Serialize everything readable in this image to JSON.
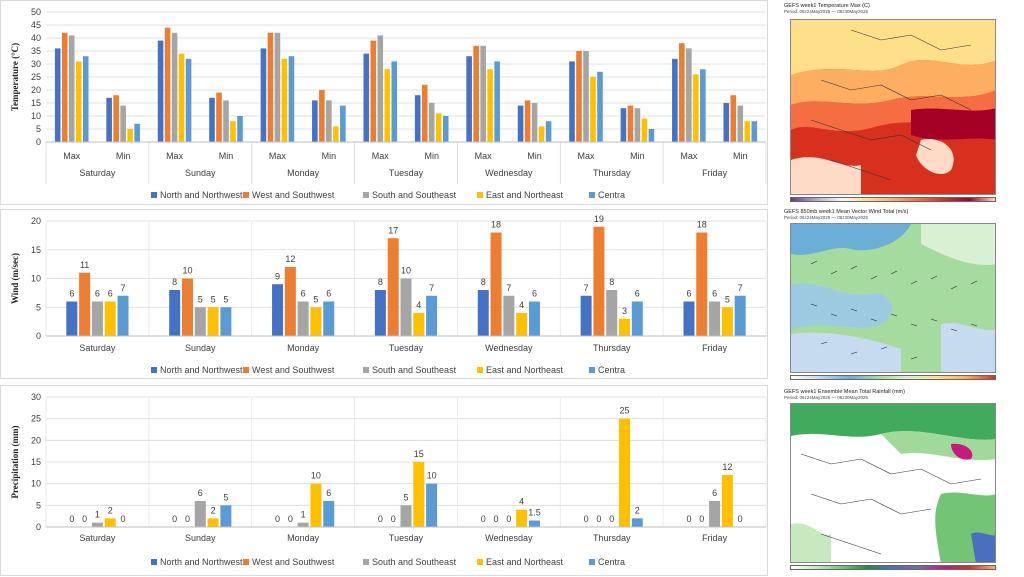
{
  "colors": {
    "North and Northwest": "#4472C4",
    "West and Southwest": "#ED7D31",
    "South and Southeast": "#A5A5A5",
    "East and Northeast": "#FFC000",
    "Centra": "#5B9BD5"
  },
  "series_names": [
    "North and Northwest",
    "West and Southwest",
    "South and Southeast",
    "East and Northeast",
    "Centra"
  ],
  "chart_data": [
    {
      "type": "bar",
      "ylabel": "Temperature (°C)",
      "ylim": [
        0,
        50
      ],
      "yticks": [
        0,
        5,
        10,
        15,
        20,
        25,
        30,
        35,
        40,
        45,
        50
      ],
      "days": [
        "Saturday",
        "Sunday",
        "Monday",
        "Tuesday",
        "Wednesday",
        "Thursday",
        "Friday"
      ],
      "subcategories": [
        "Max",
        "Min"
      ],
      "grid": true,
      "legend": "bottom",
      "series": [
        {
          "name": "North and Northwest",
          "values": [
            [
              36,
              17
            ],
            [
              39,
              17
            ],
            [
              36,
              16
            ],
            [
              34,
              18
            ],
            [
              33,
              14
            ],
            [
              31,
              13
            ],
            [
              32,
              15
            ]
          ]
        },
        {
          "name": "West and Southwest",
          "values": [
            [
              42,
              18
            ],
            [
              44,
              19
            ],
            [
              42,
              20
            ],
            [
              39,
              22
            ],
            [
              37,
              16
            ],
            [
              35,
              14
            ],
            [
              38,
              18
            ]
          ]
        },
        {
          "name": "South and Southeast",
          "values": [
            [
              41,
              14
            ],
            [
              42,
              16
            ],
            [
              42,
              16
            ],
            [
              41,
              15
            ],
            [
              37,
              15
            ],
            [
              35,
              13
            ],
            [
              36,
              14
            ]
          ]
        },
        {
          "name": "East and Northeast",
          "values": [
            [
              31,
              5
            ],
            [
              34,
              8
            ],
            [
              32,
              6
            ],
            [
              28,
              11
            ],
            [
              28,
              6
            ],
            [
              25,
              9
            ],
            [
              26,
              8
            ]
          ]
        },
        {
          "name": "Centra",
          "values": [
            [
              33,
              7
            ],
            [
              32,
              10
            ],
            [
              33,
              14
            ],
            [
              31,
              10
            ],
            [
              31,
              8
            ],
            [
              27,
              5
            ],
            [
              28,
              8
            ]
          ]
        }
      ]
    },
    {
      "type": "bar",
      "ylabel": "Wind (m/sec)",
      "ylim": [
        0,
        20
      ],
      "yticks": [
        0,
        5,
        10,
        15,
        20
      ],
      "categories": [
        "Saturday",
        "Sunday",
        "Monday",
        "Tuesday",
        "Wednesday",
        "Thursday",
        "Friday"
      ],
      "grid": true,
      "legend": "bottom",
      "data_labels": true,
      "series": [
        {
          "name": "North and Northwest",
          "values": [
            6,
            8,
            9,
            8,
            8,
            7,
            6
          ]
        },
        {
          "name": "West and Southwest",
          "values": [
            11,
            10,
            12,
            17,
            18,
            19,
            18
          ]
        },
        {
          "name": "South and Southeast",
          "values": [
            6,
            5,
            6,
            10,
            7,
            8,
            6
          ]
        },
        {
          "name": "East and Northeast",
          "values": [
            6,
            5,
            5,
            4,
            4,
            3,
            5
          ]
        },
        {
          "name": "Centra",
          "values": [
            7,
            5,
            6,
            7,
            6,
            6,
            7
          ]
        }
      ]
    },
    {
      "type": "bar",
      "ylabel": "Precipitation (mm)",
      "ylim": [
        0,
        30
      ],
      "yticks": [
        0,
        5,
        10,
        15,
        20,
        25,
        30
      ],
      "categories": [
        "Saturday",
        "Sunday",
        "Monday",
        "Tuesday",
        "Wednesday",
        "Thursday",
        "Friday"
      ],
      "grid": true,
      "legend": "bottom",
      "data_labels": true,
      "series": [
        {
          "name": "North and Northwest",
          "values": [
            0,
            0,
            0,
            0,
            0,
            0,
            0
          ]
        },
        {
          "name": "West and Southwest",
          "values": [
            0,
            0,
            0,
            0,
            0,
            0,
            0
          ]
        },
        {
          "name": "South and Southeast",
          "values": [
            1,
            6,
            1,
            5,
            0,
            0,
            6
          ]
        },
        {
          "name": "East and Northeast",
          "values": [
            2,
            2,
            10,
            15,
            4,
            25,
            12
          ]
        },
        {
          "name": "Centra",
          "values": [
            0,
            5,
            6,
            10,
            1.5,
            2,
            0
          ]
        }
      ]
    }
  ],
  "maps": [
    {
      "title": "GEFS week1 Temperature Max (C)",
      "period": "Period: 06z24May2025 — 06z30May2025"
    },
    {
      "title": "GEFS 850mb week1 Mean Vector Wind Total (m/s)",
      "period": "Period: 06z24May2025 — 06z30May2025"
    },
    {
      "title": "GEFS week1 Ensemble Mean Total Rainfall (mm)",
      "period": "Period: 06z24May2025 — 06z30May2025"
    }
  ]
}
